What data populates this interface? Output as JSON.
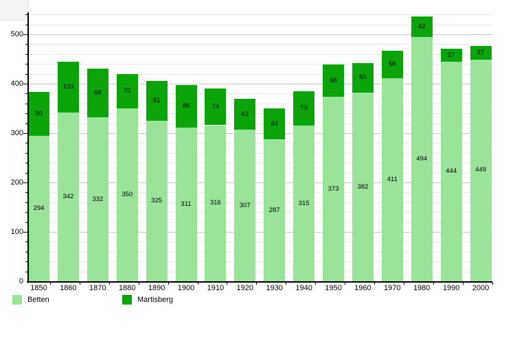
{
  "chart_data": {
    "type": "bar",
    "stacked": true,
    "title": "",
    "xlabel": "",
    "ylabel": "",
    "categories": [
      "1850",
      "1860",
      "1870",
      "1880",
      "1890",
      "1900",
      "1910",
      "1920",
      "1930",
      "1940",
      "1950",
      "1960",
      "1970",
      "1980",
      "1990",
      "2000"
    ],
    "series": [
      {
        "name": "Betten",
        "color": "#99e499",
        "values": [
          294,
          342,
          332,
          350,
          325,
          311,
          316,
          307,
          287,
          315,
          373,
          382,
          411,
          494,
          444,
          449
        ]
      },
      {
        "name": "Martisberg",
        "color": "#0ba50b",
        "values": [
          90,
          103,
          98,
          70,
          81,
          86,
          74,
          62,
          63,
          70,
          66,
          60,
          56,
          42,
          27,
          27
        ]
      }
    ],
    "totals": [
      384,
      445,
      430,
      420,
      406,
      397,
      390,
      369,
      350,
      385,
      439,
      442,
      467,
      536,
      471,
      476
    ],
    "ylim": [
      0,
      540
    ],
    "y_major_ticks": [
      0,
      100,
      200,
      300,
      400,
      500
    ],
    "y_minor_step": 20,
    "grid": true,
    "bar_value_labels": true,
    "legend_position": "bottom"
  },
  "legend": {
    "items": [
      {
        "label": "Betten",
        "color": "#99e499"
      },
      {
        "label": "Martisberg",
        "color": "#0ba50b"
      }
    ]
  },
  "colors": {
    "background": "#ffffff",
    "axis": "#000000",
    "grid_minor": "#e8e8e8",
    "grid_major": "#c6c6c6",
    "text": "#000000"
  }
}
